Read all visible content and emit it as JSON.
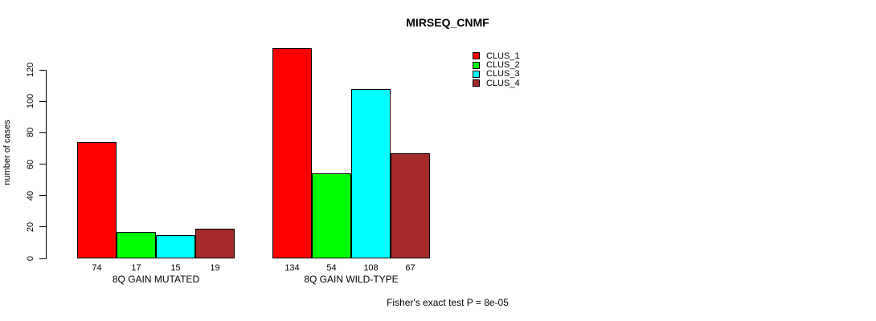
{
  "chart_data": {
    "type": "bar",
    "title": "MIRSEQ_CNMF",
    "ylabel": "number of cases",
    "xlabel": "",
    "annotation": "Fisher's exact test P = 8e-05",
    "categories": [
      "8Q GAIN MUTATED",
      "8Q GAIN WILD-TYPE"
    ],
    "series": [
      {
        "name": "CLUS_1",
        "color": "#FF0000",
        "values": [
          74,
          134
        ]
      },
      {
        "name": "CLUS_2",
        "color": "#00FF00",
        "values": [
          17,
          54
        ]
      },
      {
        "name": "CLUS_3",
        "color": "#00FFFF",
        "values": [
          15,
          108
        ]
      },
      {
        "name": "CLUS_4",
        "color": "#A52A2A",
        "values": [
          19,
          67
        ]
      }
    ],
    "yticks": [
      0,
      20,
      40,
      60,
      80,
      100,
      120
    ],
    "ylim": [
      0,
      120
    ],
    "grid": false,
    "legend_position": "top-right",
    "bar_border_color": "#000000"
  }
}
